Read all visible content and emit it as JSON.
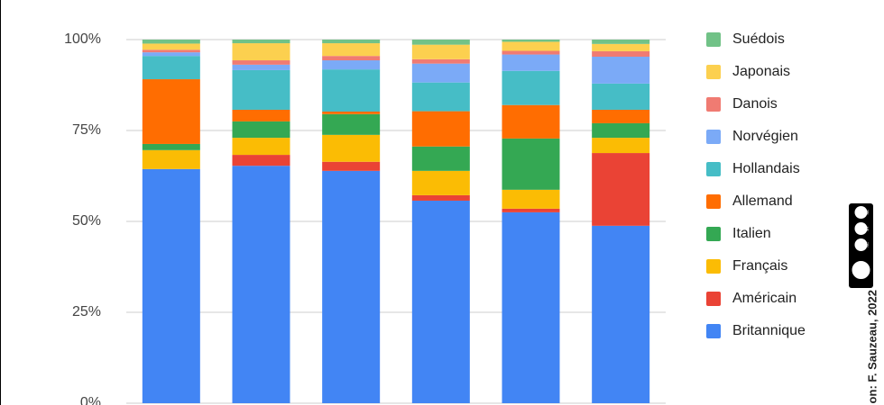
{
  "chart_data": {
    "type": "stacked_bar_100",
    "categories": [
      null,
      null,
      null,
      null,
      null,
      null
    ],
    "ylim": [
      0,
      100
    ],
    "yticks": [
      {
        "value": 0,
        "label": "0%"
      },
      {
        "value": 25,
        "label": "25%"
      },
      {
        "value": 50,
        "label": "50%"
      },
      {
        "value": 75,
        "label": "75%"
      },
      {
        "value": 100,
        "label": "100%"
      }
    ],
    "grid": true,
    "legend": "right",
    "series": [
      {
        "name": "Britannique",
        "color": "#4285f4",
        "values": [
          64.4,
          65.3,
          63.9,
          55.7,
          52.5,
          48.8
        ]
      },
      {
        "name": "Américain",
        "color": "#ea4335",
        "values": [
          0,
          3,
          2.5,
          1.5,
          1,
          20
        ]
      },
      {
        "name": "Français",
        "color": "#fbbc04",
        "values": [
          5.2,
          4.7,
          7.4,
          6.7,
          5.2,
          4.2
        ]
      },
      {
        "name": "Italien",
        "color": "#34a853",
        "values": [
          1.7,
          4.5,
          5.7,
          6.7,
          14.1,
          4
        ]
      },
      {
        "name": "Allemand",
        "color": "#ff6d01",
        "values": [
          17.8,
          3.2,
          0.7,
          9.7,
          9.2,
          3.7
        ]
      },
      {
        "name": "Hollandais",
        "color": "#46bdc6",
        "values": [
          6.4,
          10.9,
          11.6,
          7.9,
          9.4,
          7.2
        ]
      },
      {
        "name": "Norvégien",
        "color": "#7baaf7",
        "values": [
          1,
          1.5,
          2.5,
          5.2,
          4.5,
          7.4
        ]
      },
      {
        "name": "Danois",
        "color": "#f07b72",
        "values": [
          0.7,
          1.2,
          1.2,
          1.2,
          1,
          1.5
        ]
      },
      {
        "name": "Japonais",
        "color": "#fcd04f",
        "values": [
          1.7,
          4.7,
          3.5,
          4,
          2.5,
          2
        ]
      },
      {
        "name": "Suédois",
        "color": "#71c287",
        "values": [
          1.1,
          1,
          1,
          1.4,
          0.6,
          1.2
        ]
      }
    ],
    "credit": "on: F. Sauzeau, 2022",
    "license": [
      "BY",
      "NC",
      "SA"
    ]
  }
}
